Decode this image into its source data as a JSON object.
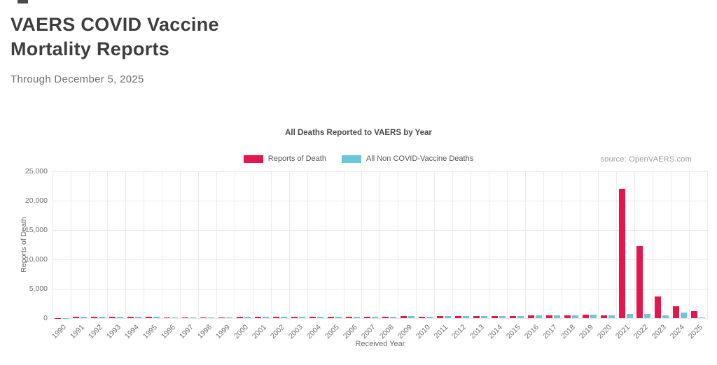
{
  "header": {
    "title_line1": "VAERS COVID Vaccine",
    "title_line2": "Mortality Reports",
    "subtitle": "Through December 5, 2025"
  },
  "chart": {
    "source": "source: OpenVAERS.com"
  },
  "chart_data": {
    "type": "bar",
    "title": "All Deaths Reported to VAERS by Year",
    "xlabel": "Received Year",
    "ylabel": "Reports of Death",
    "ylim": [
      0,
      25000
    ],
    "yticks": [
      0,
      5000,
      10000,
      15000,
      20000,
      25000
    ],
    "ytick_labels": [
      "0",
      "5,000",
      "10,000",
      "15,000",
      "20,000",
      "25,000"
    ],
    "grid": true,
    "legend_position": "top",
    "categories": [
      "1990",
      "1991",
      "1992",
      "1993",
      "1994",
      "1995",
      "1996",
      "1997",
      "1998",
      "1999",
      "2000",
      "2001",
      "2002",
      "2003",
      "2004",
      "2005",
      "2006",
      "2007",
      "2008",
      "2009",
      "2010",
      "2011",
      "2012",
      "2013",
      "2014",
      "2015",
      "2016",
      "2017",
      "2018",
      "2019",
      "2020",
      "2021",
      "2022",
      "2023",
      "2024",
      "2025"
    ],
    "series": [
      {
        "name": "Reports of Death",
        "color": "#e4164e",
        "values": [
          30,
          280,
          270,
          280,
          250,
          200,
          160,
          175,
          160,
          180,
          185,
          190,
          185,
          220,
          200,
          210,
          225,
          245,
          270,
          305,
          290,
          330,
          330,
          330,
          345,
          370,
          430,
          460,
          505,
          605,
          425,
          22000,
          12300,
          3650,
          2050,
          1200
        ]
      },
      {
        "name": "All Non COVID-Vaccine Deaths",
        "color": "#6cc7d6",
        "values": [
          30,
          280,
          270,
          280,
          250,
          200,
          160,
          175,
          160,
          180,
          185,
          190,
          185,
          220,
          200,
          210,
          225,
          245,
          270,
          305,
          290,
          330,
          330,
          330,
          345,
          370,
          430,
          460,
          505,
          605,
          425,
          750,
          700,
          450,
          900,
          120
        ]
      }
    ]
  }
}
